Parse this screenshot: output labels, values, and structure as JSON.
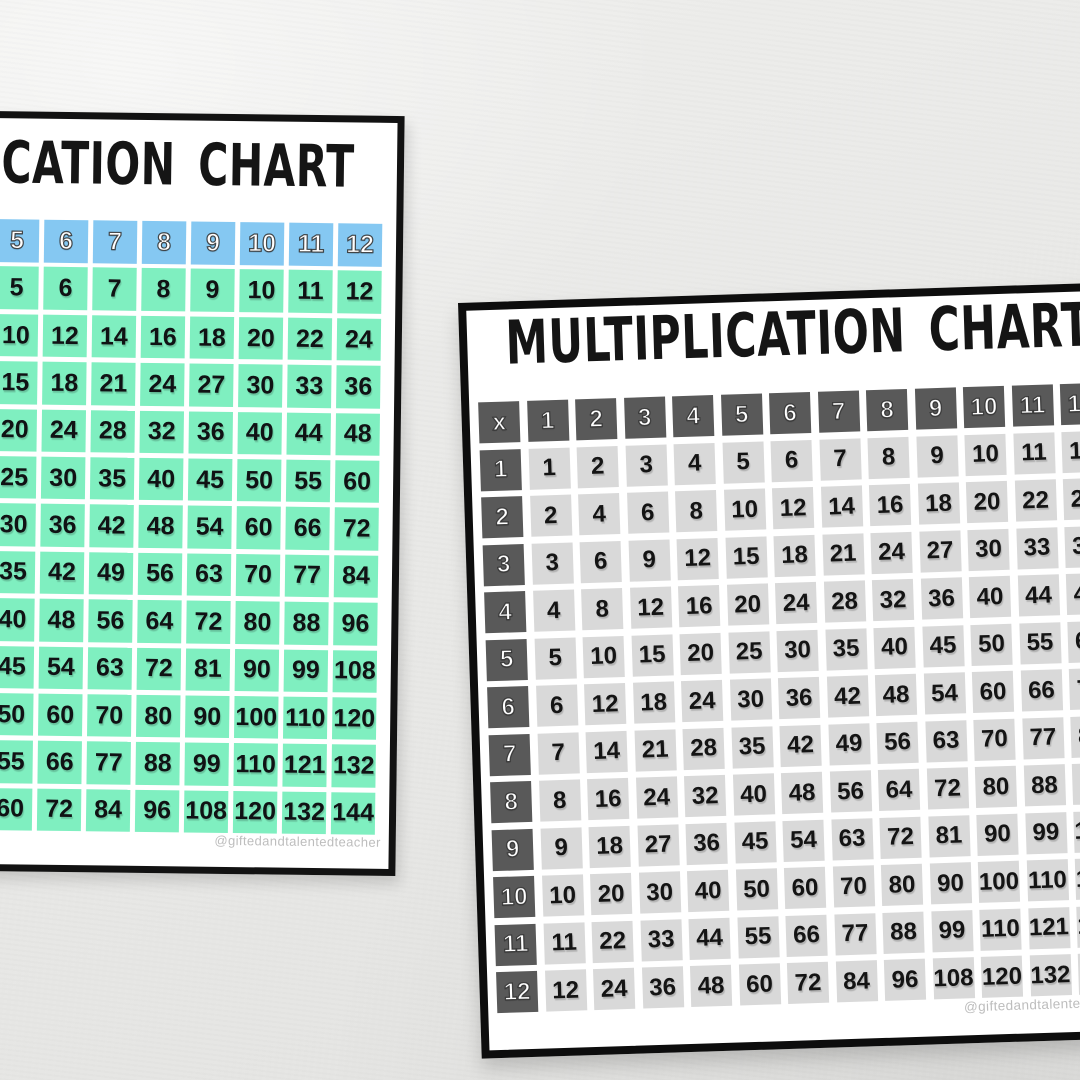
{
  "background": {
    "color": "#E9E9E7"
  },
  "left_chart": {
    "title": "MULTIPLICATION CHART",
    "watermark": "@giftedandtalentedteacher",
    "colors": {
      "header_bg": "#85C8F2",
      "header_text": "#FFFFFF",
      "body_bg": "#7FEFC0",
      "body_text": "#101214",
      "border": "#121212",
      "paper": "#FFFFFF"
    }
  },
  "right_chart": {
    "title": "MULTIPLICATION CHART",
    "watermark": "@giftedandtalentedteacher",
    "colors": {
      "header_bg": "#595959",
      "header_text": "#FFFFFF",
      "body_bg": "#D9D9D9",
      "body_text": "#141414",
      "border": "#0D0D0D",
      "paper": "#FFFFFF"
    }
  },
  "chart_data": {
    "type": "table",
    "title": "MULTIPLICATION CHART",
    "corner_label": "x",
    "columns": [
      1,
      2,
      3,
      4,
      5,
      6,
      7,
      8,
      9,
      10,
      11,
      12
    ],
    "rows": [
      1,
      2,
      3,
      4,
      5,
      6,
      7,
      8,
      9,
      10,
      11,
      12
    ],
    "values": [
      [
        1,
        2,
        3,
        4,
        5,
        6,
        7,
        8,
        9,
        10,
        11,
        12
      ],
      [
        2,
        4,
        6,
        8,
        10,
        12,
        14,
        16,
        18,
        20,
        22,
        24
      ],
      [
        3,
        6,
        9,
        12,
        15,
        18,
        21,
        24,
        27,
        30,
        33,
        36
      ],
      [
        4,
        8,
        12,
        16,
        20,
        24,
        28,
        32,
        36,
        40,
        44,
        48
      ],
      [
        5,
        10,
        15,
        20,
        25,
        30,
        35,
        40,
        45,
        50,
        55,
        60
      ],
      [
        6,
        12,
        18,
        24,
        30,
        36,
        42,
        48,
        54,
        60,
        66,
        72
      ],
      [
        7,
        14,
        21,
        28,
        35,
        42,
        49,
        56,
        63,
        70,
        77,
        84
      ],
      [
        8,
        16,
        24,
        32,
        40,
        48,
        56,
        64,
        72,
        80,
        88,
        96
      ],
      [
        9,
        18,
        27,
        36,
        45,
        54,
        63,
        72,
        81,
        90,
        99,
        108
      ],
      [
        10,
        20,
        30,
        40,
        50,
        60,
        70,
        80,
        90,
        100,
        110,
        120
      ],
      [
        11,
        22,
        33,
        44,
        55,
        66,
        77,
        88,
        99,
        110,
        121,
        132
      ],
      [
        12,
        24,
        36,
        48,
        60,
        72,
        84,
        96,
        108,
        120,
        132,
        144
      ]
    ]
  }
}
